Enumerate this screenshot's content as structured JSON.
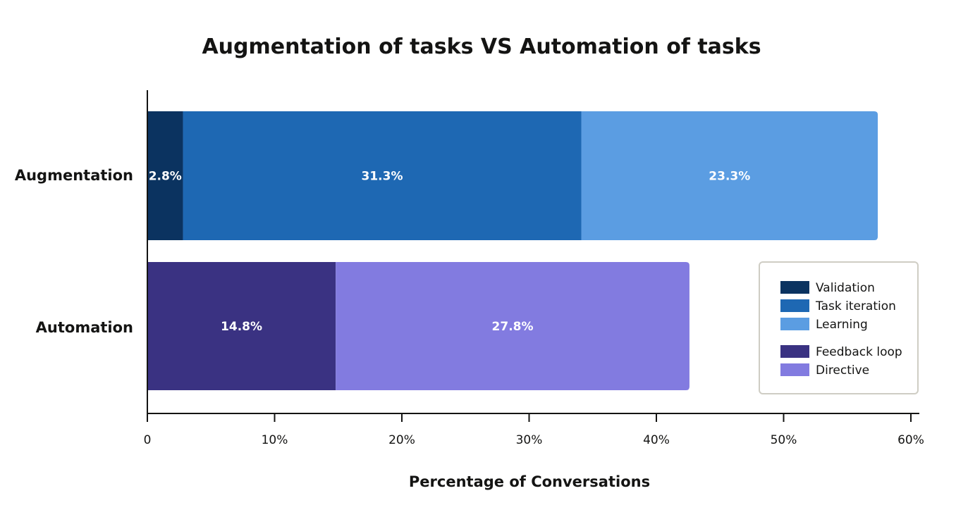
{
  "chart_data": {
    "type": "bar",
    "orientation": "horizontal",
    "stacked": true,
    "title": "Augmentation of tasks VS Automation of tasks",
    "xlabel": "Percentage of Conversations",
    "ylabel": "",
    "xlim": [
      0,
      60
    ],
    "x_ticks": [
      0,
      10,
      20,
      30,
      40,
      50,
      60
    ],
    "x_tick_labels": [
      "0",
      "10%",
      "20%",
      "30%",
      "40%",
      "50%",
      "60%"
    ],
    "categories": [
      "Augmentation",
      "Automation"
    ],
    "series": [
      {
        "name": "Validation",
        "category": "Augmentation",
        "value": 2.8,
        "label": "2.8%",
        "color": "#0b3360"
      },
      {
        "name": "Task iteration",
        "category": "Augmentation",
        "value": 31.3,
        "label": "31.3%",
        "color": "#1e68b3"
      },
      {
        "name": "Learning",
        "category": "Augmentation",
        "value": 23.3,
        "label": "23.3%",
        "color": "#5b9de2"
      },
      {
        "name": "Feedback loop",
        "category": "Automation",
        "value": 14.8,
        "label": "14.8%",
        "color": "#3a3282"
      },
      {
        "name": "Directive",
        "category": "Automation",
        "value": 27.8,
        "label": "27.8%",
        "color": "#827be0"
      }
    ],
    "legend": {
      "position": "lower-right",
      "groups": [
        [
          "Validation",
          "Task iteration",
          "Learning"
        ],
        [
          "Feedback loop",
          "Directive"
        ]
      ]
    },
    "grid": false
  }
}
